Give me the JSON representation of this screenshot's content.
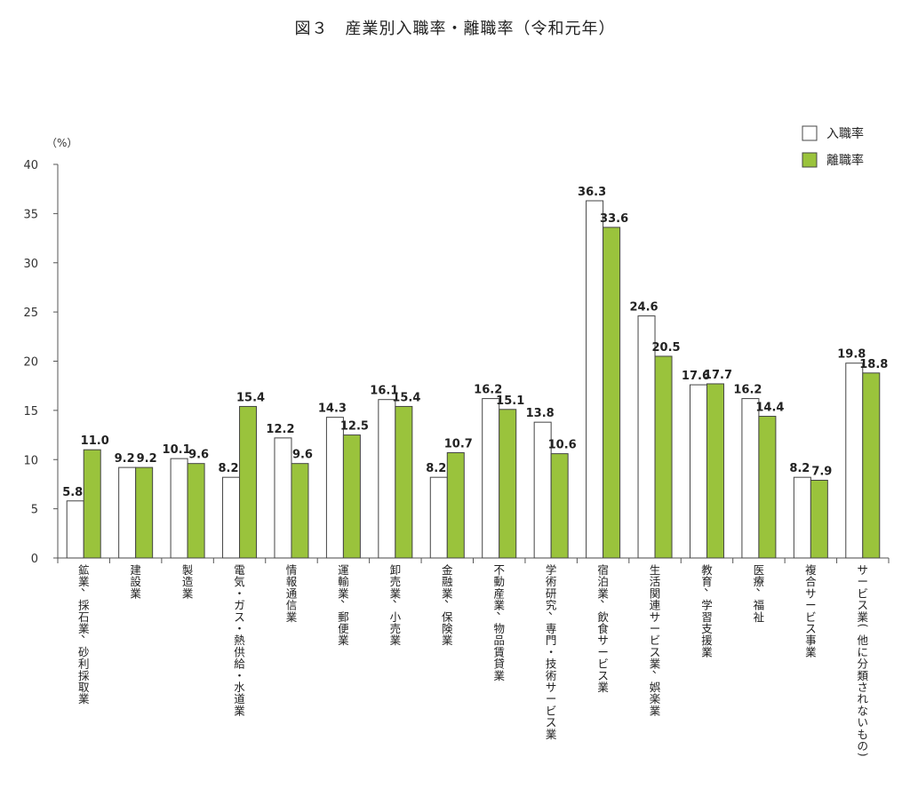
{
  "chart_data": {
    "type": "bar",
    "title": "図３　産業別入職率・離職率（令和元年）",
    "ylabel": "（%）",
    "ylim": [
      0,
      40
    ],
    "yticks": [
      "0",
      "5",
      "10",
      "15",
      "20",
      "25",
      "30",
      "35",
      "40"
    ],
    "legend_position": "top-right",
    "grid": false,
    "categories": [
      "鉱業，採石業，砂利採取業",
      "建設業",
      "製造業",
      "電気・ガス・熱供給・水道業",
      "情報通信業",
      "運輸業，郵便業",
      "卸売業，小売業",
      "金融業，保険業",
      "不動産業，物品賃貸業",
      "学術研究，専門・技術サービス業",
      "宿泊業，飲食サービス業",
      "生活関連サービス業，娯楽業",
      "教育，学習支援業",
      "医療，福祉",
      "複合サービス事業",
      "サービス業（他に分類されないもの）"
    ],
    "series": [
      {
        "name": "入職率",
        "color": "#ffffff",
        "values": [
          5.8,
          9.2,
          10.1,
          8.2,
          12.2,
          14.3,
          16.1,
          8.2,
          16.2,
          13.8,
          36.3,
          24.6,
          17.6,
          16.2,
          8.2,
          19.8
        ],
        "labels": [
          "5.8",
          "9.2",
          "10.1",
          "8.2",
          "12.2",
          "14.3",
          "16.1",
          "8.2",
          "16.2",
          "13.8",
          "36.3",
          "24.6",
          "17.6",
          "16.2",
          "8.2",
          "19.8"
        ]
      },
      {
        "name": "離職率",
        "color": "#9ac33c",
        "values": [
          11.0,
          9.2,
          9.6,
          15.4,
          9.6,
          12.5,
          15.4,
          10.7,
          15.1,
          10.6,
          33.6,
          20.5,
          17.7,
          14.4,
          7.9,
          18.8
        ],
        "labels": [
          "11.0",
          "9.2",
          "9.6",
          "15.4",
          "9.6",
          "12.5",
          "15.4",
          "10.7",
          "15.1",
          "10.6",
          "33.6",
          "20.5",
          "17.7",
          "14.4",
          "7.9",
          "18.8"
        ]
      }
    ]
  }
}
